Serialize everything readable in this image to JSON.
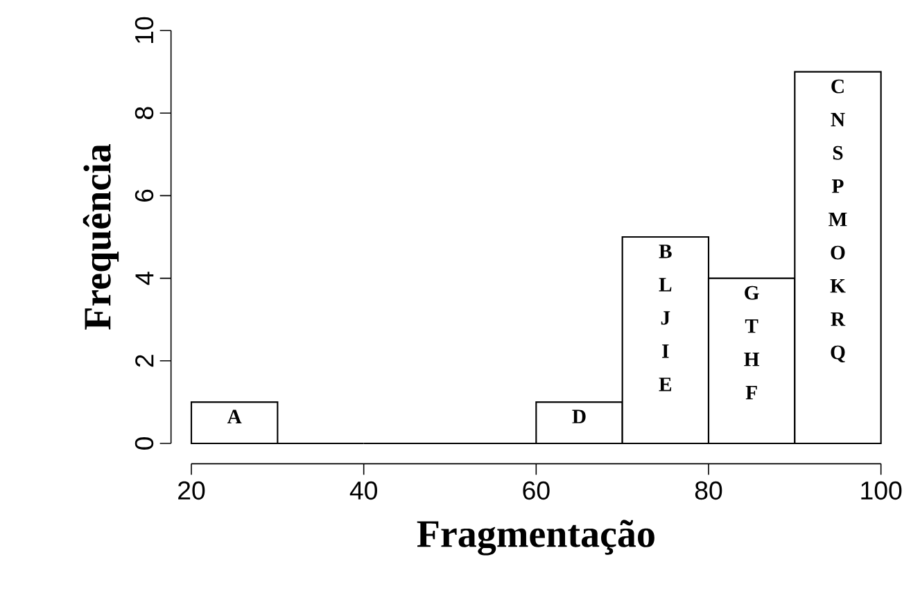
{
  "chart_data": {
    "type": "histogram",
    "xlabel": "Fragmentação",
    "ylabel": "Frequência",
    "bins": [
      20,
      30,
      40,
      50,
      60,
      70,
      80,
      90,
      100
    ],
    "values": [
      1,
      0,
      0,
      0,
      1,
      5,
      4,
      9
    ],
    "xlim": [
      20,
      100
    ],
    "ylim": [
      0,
      10
    ],
    "xticks": [
      20,
      40,
      60,
      80,
      100
    ],
    "yticks": [
      0,
      2,
      4,
      6,
      8,
      10
    ],
    "value_labels": [
      "A",
      null,
      null,
      null,
      "D",
      "B L J I E",
      "G T H F",
      "C N S P M O K R Q"
    ]
  }
}
